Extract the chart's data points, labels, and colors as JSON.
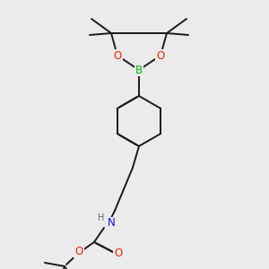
{
  "background_color": "#ebebeb",
  "bond_color": "#1a1a1a",
  "atom_colors": {
    "B": "#00bb00",
    "O": "#ee2200",
    "N": "#1111ee",
    "H": "#666666",
    "C": "#1a1a1a"
  },
  "line_width": 1.4,
  "dbo": 0.012,
  "fig_size": [
    3.0,
    3.0
  ],
  "dpi": 100
}
